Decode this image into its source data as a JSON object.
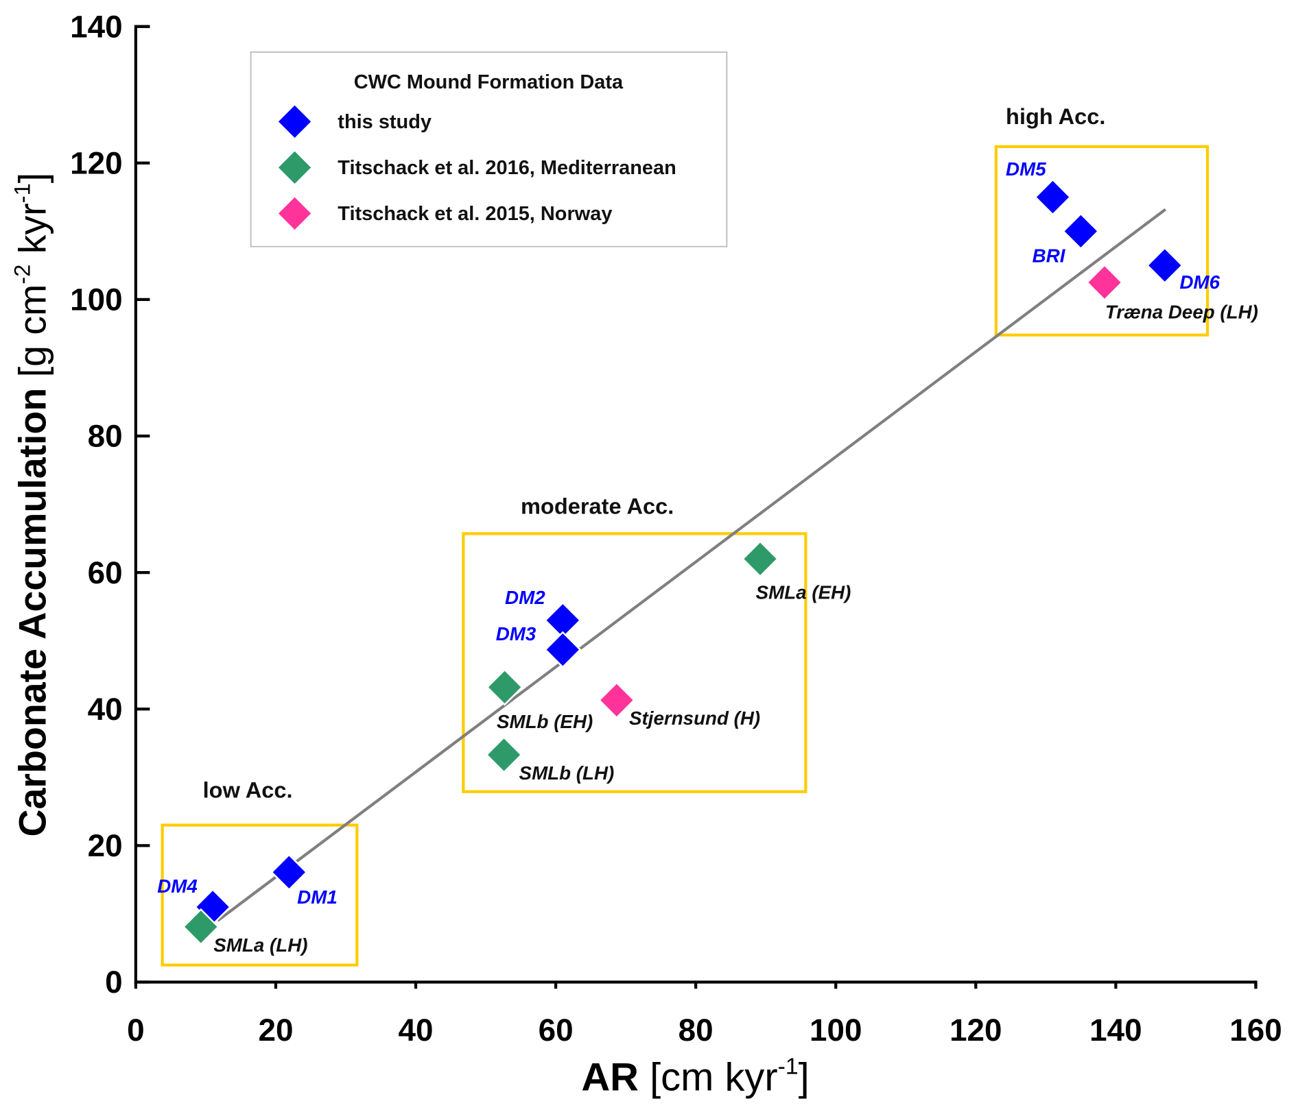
{
  "chart_data": {
    "type": "scatter",
    "title": "",
    "xlabel": "AR",
    "xlabel_unit": "[cm kyr",
    "xlabel_unit_sup": "-1",
    "xlabel_unit_end": "]",
    "ylabel": "Carbonate Accumulation",
    "ylabel_unit": "[g cm",
    "ylabel_unit_sup1": "-2",
    "ylabel_unit_mid": " kyr",
    "ylabel_unit_sup2": "-1",
    "ylabel_unit_end": "]",
    "xlim": [
      0,
      160
    ],
    "ylim": [
      0,
      140
    ],
    "xticks": [
      0,
      20,
      40,
      60,
      80,
      100,
      120,
      140,
      160
    ],
    "yticks": [
      0,
      20,
      40,
      60,
      80,
      100,
      120,
      140
    ],
    "grid": false,
    "legend": {
      "title": "CWC Mound Formation Data",
      "placement": "top-left",
      "entries": [
        "this study",
        "Titschack et al. 2016, Mediterranean",
        "Titschack et al. 2015, Norway"
      ]
    },
    "colors": {
      "this study": "#0000ff",
      "Mediterranean": "#2e9a6a",
      "Norway": "#ff3399",
      "box": "#ffcc00",
      "fit": "#808080"
    },
    "series": [
      {
        "name": "this study",
        "color": "#0000ff",
        "points": [
          {
            "label": "DM5",
            "x": 131,
            "y": 115
          },
          {
            "label": "BRI",
            "x": 135,
            "y": 110
          },
          {
            "label": "DM6",
            "x": 147,
            "y": 105
          },
          {
            "label": "DM2",
            "x": 61,
            "y": 53
          },
          {
            "label": "DM3",
            "x": 61,
            "y": 48.7
          },
          {
            "label": "DM1",
            "x": 21.9,
            "y": 16.1
          },
          {
            "label": "DM4",
            "x": 11,
            "y": 11
          }
        ]
      },
      {
        "name": "Titschack et al. 2016, Mediterranean",
        "color": "#2e9a6a",
        "points": [
          {
            "label": "SMLb (EH)",
            "x": 52.7,
            "y": 43.2
          },
          {
            "label": "SMLb (LH)",
            "x": 52.6,
            "y": 33.3
          },
          {
            "label": "SMLa (EH)",
            "x": 89.2,
            "y": 62
          },
          {
            "label": "SMLa (LH)",
            "x": 9.3,
            "y": 8.1
          }
        ]
      },
      {
        "name": "Titschack et al. 2015, Norway",
        "color": "#ff3399",
        "points": [
          {
            "label": "Træna Deep (LH)",
            "x": 138.4,
            "y": 102.5
          },
          {
            "label": "Stjernsund (H)",
            "x": 68.7,
            "y": 41.3
          }
        ]
      }
    ],
    "fit_line": {
      "x": [
        11.7,
        147.1
      ],
      "y": [
        9,
        113.2
      ]
    },
    "regions": [
      {
        "label": "low Acc.",
        "x": [
          3.8,
          31.6
        ],
        "y": [
          2.5,
          23
        ]
      },
      {
        "label": "moderate Acc.",
        "x": [
          46.8,
          95.7
        ],
        "y": [
          27.9,
          65.7
        ]
      },
      {
        "label": "high Acc.",
        "x": [
          122.9,
          153.1
        ],
        "y": [
          94.8,
          122.4
        ]
      }
    ]
  }
}
